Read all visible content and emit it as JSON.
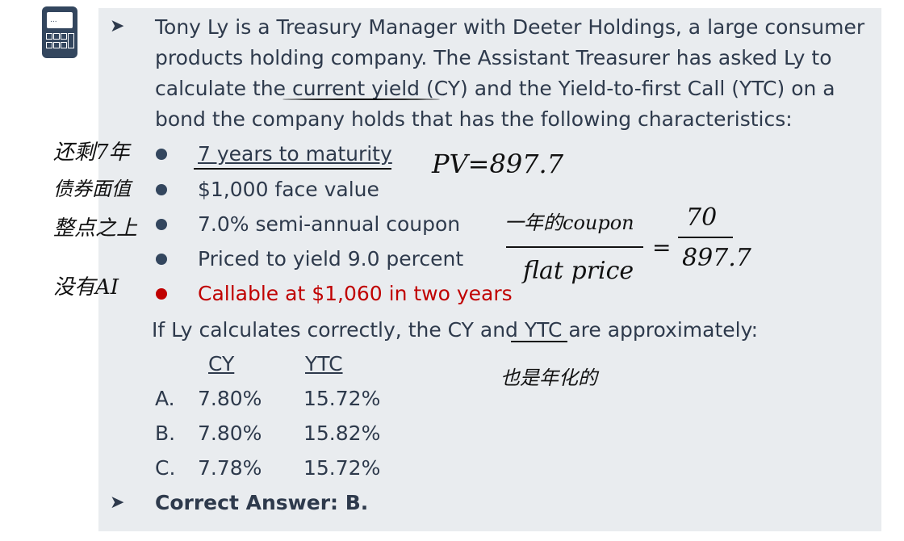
{
  "icon": "calculator-icon",
  "intro": [
    "Tony Ly is a Treasury Manager with Deeter Holdings, a large consumer",
    "products holding company. The Assistant Treasurer has asked Ly to",
    "calculate the current yield (CY) and the Yield-to-first Call (YTC) on a",
    "bond the company holds that has the following characteristics:"
  ],
  "bullets": [
    "7 years to maturity",
    "$1,000 face value",
    "7.0% semi-annual coupon",
    "Priced to yield 9.0 percent",
    "Callable at $1,060 in two years"
  ],
  "question": "If Ly calculates correctly, the CY and YTC are approximately:",
  "table": {
    "headers": [
      "CY",
      "YTC"
    ],
    "rows": [
      {
        "label": "A.",
        "cy": "7.80%",
        "ytc": "15.72%"
      },
      {
        "label": "B.",
        "cy": "7.80%",
        "ytc": "15.82%"
      },
      {
        "label": "C.",
        "cy": "7.78%",
        "ytc": "15.72%"
      }
    ]
  },
  "answer": "Correct Answer: B.",
  "colors": {
    "panel": "#e9ecef",
    "text": "#2e3a4c",
    "highlight": "#c00000"
  },
  "handwriting": {
    "left": [
      "还剩7年",
      "债券面值",
      "整点之上",
      "没有AI"
    ],
    "pv": "PV=897.7",
    "numerator": "一年的coupon",
    "denominator": "flat price",
    "equals": "=",
    "num2": "70",
    "den2": "897.7",
    "note": "也是年化的"
  }
}
